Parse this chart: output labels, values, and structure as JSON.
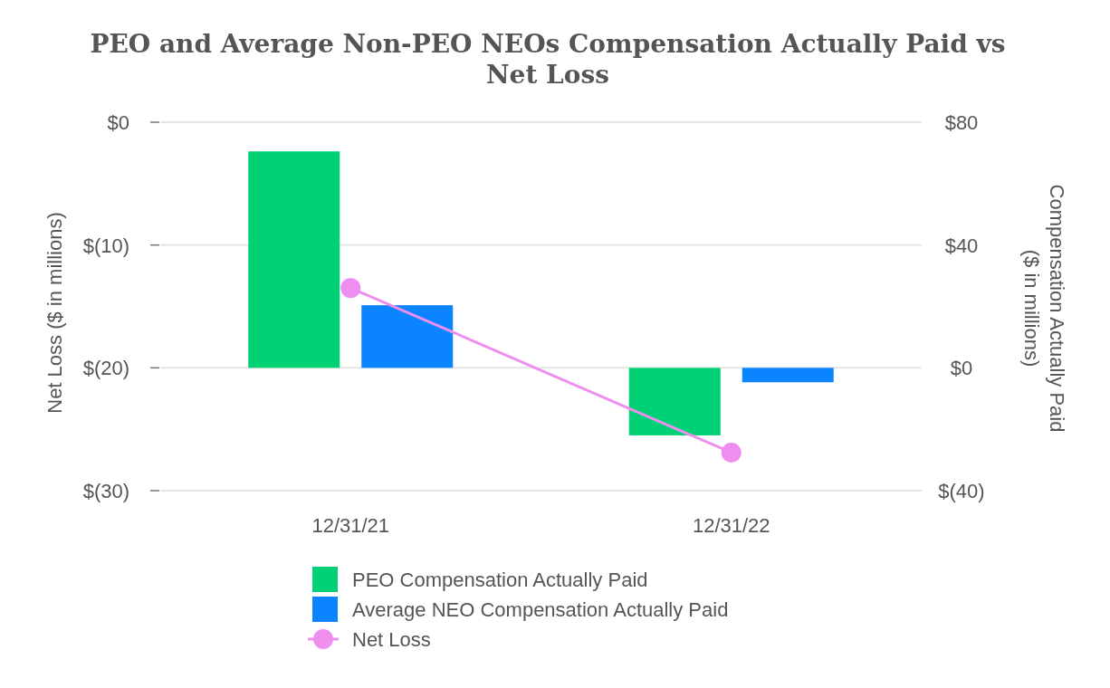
{
  "chart_data": {
    "type": "bar",
    "title": "PEO and Average Non-PEO NEOs Compensation Actually Paid vs Net Loss",
    "categories": [
      "12/31/21",
      "12/31/22"
    ],
    "series": [
      {
        "name": "PEO Compensation Actually Paid",
        "color": "#00d174",
        "axis": "y2",
        "values": [
          70.5,
          -22
        ]
      },
      {
        "name": "Average NEO Compensation Actually Paid",
        "color": "#0a84ff",
        "axis": "y2",
        "values": [
          20.4,
          -4.7
        ]
      },
      {
        "name": "Net Loss",
        "type": "line",
        "color": "#ee8ff0",
        "values": [
          -13.5,
          -26.9
        ]
      }
    ],
    "ylabel": "Net Loss ($ in millions)",
    "y2label": "Compensation Actually Paid ($ in millions)",
    "ylim": [
      -30,
      0
    ],
    "yticks": [
      {
        "value": 0,
        "label": "$0"
      },
      {
        "value": -10,
        "label": "$(10)"
      },
      {
        "value": -20,
        "label": "$(20)"
      },
      {
        "value": -30,
        "label": "$(30)"
      }
    ],
    "y2lim": [
      -40,
      80
    ],
    "y2ticks": [
      {
        "value": 80,
        "label": "$80"
      },
      {
        "value": 40,
        "label": "$40"
      },
      {
        "value": 0,
        "label": "$0"
      },
      {
        "value": -40,
        "label": "$(40)"
      }
    ],
    "grid": "y",
    "legend": "bottom",
    "marker": "circle"
  }
}
